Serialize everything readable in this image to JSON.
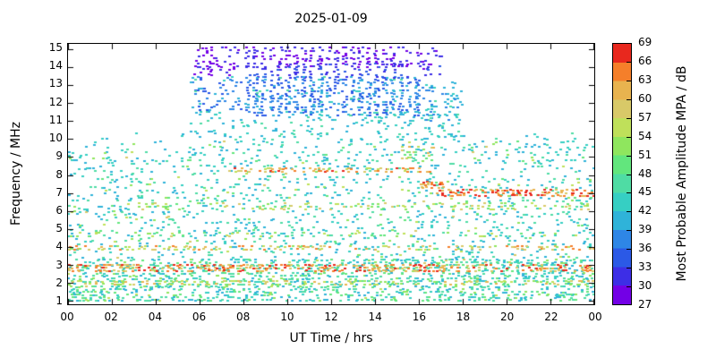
{
  "chart_data": {
    "type": "scatter",
    "title": "2025-01-09",
    "xlabel": "UT Time / hrs",
    "ylabel": "Frequency / MHz",
    "grid": false,
    "background": "#ffffff",
    "x_range": [
      0,
      24
    ],
    "freq_range": [
      0.8,
      15.3
    ],
    "x_ticks": [
      {
        "v": 0,
        "label": "00"
      },
      {
        "v": 2,
        "label": "02"
      },
      {
        "v": 4,
        "label": "04"
      },
      {
        "v": 6,
        "label": "06"
      },
      {
        "v": 8,
        "label": "08"
      },
      {
        "v": 10,
        "label": "10"
      },
      {
        "v": 12,
        "label": "12"
      },
      {
        "v": 14,
        "label": "14"
      },
      {
        "v": 16,
        "label": "16"
      },
      {
        "v": 18,
        "label": "18"
      },
      {
        "v": 20,
        "label": "20"
      },
      {
        "v": 22,
        "label": "22"
      },
      {
        "v": 24,
        "label": "00"
      }
    ],
    "y_ticks": [
      1,
      2,
      3,
      4,
      5,
      6,
      7,
      8,
      9,
      10,
      11,
      12,
      13,
      14,
      15
    ],
    "colorbar": {
      "label": "Most Probable Amplitude MPA / dB",
      "min": 27,
      "max": 69,
      "ticks": [
        27,
        30,
        33,
        36,
        39,
        42,
        45,
        48,
        51,
        54,
        57,
        60,
        63,
        66,
        69
      ],
      "colors": [
        "#7300e6",
        "#3d2ee6",
        "#2b59e6",
        "#2e86e6",
        "#2fb3d9",
        "#36cfc3",
        "#4fdca4",
        "#62e67d",
        "#8fe65e",
        "#bfe05a",
        "#d8c968",
        "#e8b34f",
        "#f57f2a",
        "#e8281e"
      ]
    },
    "seed": 20250109,
    "point_size": [
      3,
      2
    ],
    "bands": [
      {
        "name": "broadband-noise-floor",
        "t": [
          0,
          24
        ],
        "f": [
          1.0,
          9.9
        ],
        "density": 0.13,
        "amp": [
          39,
          47
        ]
      },
      {
        "name": "low-freq-dense-noise",
        "t": [
          0,
          24
        ],
        "f": [
          1.0,
          3.4
        ],
        "density": 0.28,
        "amp": [
          40,
          52
        ]
      },
      {
        "name": "warm-speckle",
        "t": [
          0,
          24
        ],
        "f": [
          1.0,
          9.9
        ],
        "density": 0.02,
        "amp": [
          48,
          58
        ]
      },
      {
        "name": "strong-band-2.8MHz",
        "t": [
          0,
          24
        ],
        "f": [
          2.65,
          3.0
        ],
        "density": 0.5,
        "amp": [
          57,
          69
        ]
      },
      {
        "name": "band-2MHz",
        "t": [
          0,
          24
        ],
        "f": [
          1.85,
          2.2
        ],
        "density": 0.3,
        "amp": [
          50,
          62
        ]
      },
      {
        "name": "band-4MHz",
        "t": [
          0,
          24
        ],
        "f": [
          3.8,
          4.15
        ],
        "density": 0.33,
        "amp": [
          53,
          66
        ]
      },
      {
        "name": "band-4.7MHz",
        "t": [
          0,
          24
        ],
        "f": [
          4.55,
          4.9
        ],
        "density": 0.12,
        "amp": [
          47,
          57
        ]
      },
      {
        "name": "band-6.3MHz",
        "t": [
          3,
          24
        ],
        "f": [
          6.1,
          6.45
        ],
        "density": 0.22,
        "amp": [
          48,
          60
        ]
      },
      {
        "name": "evening-7MHz-strong",
        "t": [
          16.6,
          24
        ],
        "f": [
          6.85,
          7.25
        ],
        "density": 0.55,
        "amp": [
          59,
          69
        ]
      },
      {
        "name": "daytime-8.2MHz-band",
        "t": [
          7.4,
          16.6
        ],
        "f": [
          8.1,
          8.45
        ],
        "density": 0.45,
        "amp": [
          56,
          68
        ]
      },
      {
        "name": "blob-7.5MHz-1630UT",
        "t": [
          16.1,
          17.2
        ],
        "f": [
          7.3,
          7.75
        ],
        "density": 0.6,
        "amp": [
          58,
          69
        ]
      },
      {
        "name": "patch-9MHz-afternoon",
        "t": [
          15.2,
          16.9
        ],
        "f": [
          8.7,
          9.6
        ],
        "density": 0.3,
        "amp": [
          46,
          62
        ]
      },
      {
        "name": "daytime-10-11.5MHz",
        "t": [
          5.5,
          18
        ],
        "f": [
          9.9,
          11.6
        ],
        "density": 0.14,
        "amp": [
          39,
          46
        ]
      },
      {
        "name": "morning-11.5-13.5MHz",
        "t": [
          5.6,
          8
        ],
        "f": [
          11.6,
          13.5
        ],
        "density": 0.16,
        "amp": [
          33,
          40
        ]
      },
      {
        "name": "daytime-dense-12-13.5MHz",
        "t": [
          8,
          16.2
        ],
        "f": [
          11.3,
          13.5
        ],
        "density": 0.55,
        "amp": [
          33,
          40
        ],
        "stripe": true
      },
      {
        "name": "late-11-13MHz",
        "t": [
          16.2,
          18
        ],
        "f": [
          11.0,
          12.9
        ],
        "density": 0.22,
        "amp": [
          36,
          44
        ]
      },
      {
        "name": "morning-top-purple",
        "t": [
          5.7,
          8
        ],
        "f": [
          13.5,
          15.2
        ],
        "density": 0.22,
        "amp": [
          27,
          33
        ]
      },
      {
        "name": "daytime-top-purple",
        "t": [
          8,
          15.8
        ],
        "f": [
          13.9,
          15.2
        ],
        "density": 0.45,
        "amp": [
          27,
          33
        ],
        "stripe": true
      },
      {
        "name": "daytime-13.5-14.3MHz-blue",
        "t": [
          8,
          15.6
        ],
        "f": [
          13.3,
          14.3
        ],
        "density": 0.35,
        "amp": [
          30,
          36
        ],
        "stripe": true
      },
      {
        "name": "late-top-purple",
        "t": [
          15.8,
          17.2
        ],
        "f": [
          13.5,
          15.2
        ],
        "density": 0.25,
        "amp": [
          27,
          34
        ]
      },
      {
        "name": "daytime-cyan-speckle",
        "t": [
          5.5,
          18
        ],
        "f": [
          9.9,
          13.5
        ],
        "density": 0.04,
        "amp": [
          39,
          47
        ]
      },
      {
        "name": "evening-10MHz-sparse",
        "t": [
          18,
          24
        ],
        "f": [
          9.9,
          10.5
        ],
        "density": 0.05,
        "amp": [
          39,
          46
        ]
      },
      {
        "name": "early-10MHz-sparse",
        "t": [
          0,
          5.5
        ],
        "f": [
          9.9,
          10.4
        ],
        "density": 0.03,
        "amp": [
          39,
          46
        ]
      }
    ]
  }
}
